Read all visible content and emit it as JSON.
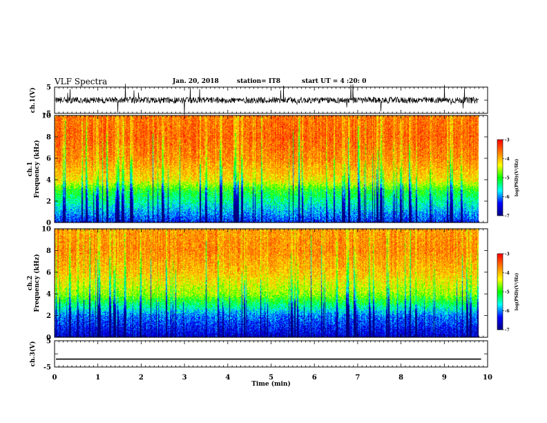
{
  "header": {
    "title": "VLF Spectra",
    "date": "Jan. 20, 2018",
    "station": "station= IT8",
    "start": "start UT =  4 :20: 0"
  },
  "chart_data": [
    {
      "type": "line",
      "panel": "ch1-waveform",
      "ylabel": "ch.1(V)",
      "ylim": [
        -5,
        5
      ],
      "yticks": [
        "5",
        "-5"
      ],
      "xlim": [
        0,
        10
      ],
      "baseline": 0,
      "description_values": {
        "typical_amplitude_V": 1.2,
        "burst_amplitude_V": 5
      }
    },
    {
      "type": "heatmap",
      "panel": "ch1-spectrogram",
      "ylabel": "ch.1\nFrequency (kHz)",
      "ylim": [
        0,
        10
      ],
      "yticks": [
        "0",
        "2",
        "4",
        "6",
        "8",
        "10"
      ],
      "xlim": [
        0,
        9.8
      ],
      "colorbar": {
        "label": "log(PSD)(V²/Hz)",
        "range": [
          -7,
          -3
        ],
        "ticks": [
          "-3",
          "-4",
          "-5",
          "-6",
          "-7"
        ]
      },
      "level_profile_kHz_vs_logPSD": [
        [
          0,
          -6.3
        ],
        [
          2,
          -5.4
        ],
        [
          3,
          -5.0
        ],
        [
          4,
          -4.2
        ],
        [
          6,
          -3.7
        ],
        [
          8,
          -3.5
        ],
        [
          10,
          -3.6
        ]
      ]
    },
    {
      "type": "heatmap",
      "panel": "ch2-spectrogram",
      "ylabel": "ch.2\nFrequency (kHz)",
      "ylim": [
        0,
        10
      ],
      "yticks": [
        "0",
        "2",
        "4",
        "6",
        "8",
        "10"
      ],
      "xlim": [
        0,
        9.8
      ],
      "colorbar": {
        "label": "log(PSD)(V²/Hz)",
        "range": [
          -7,
          -3
        ],
        "ticks": [
          "-3",
          "-4",
          "-5",
          "-6",
          "-7"
        ]
      },
      "level_profile_kHz_vs_logPSD": [
        [
          0,
          -6.6
        ],
        [
          2,
          -6.0
        ],
        [
          3,
          -5.3
        ],
        [
          4,
          -4.6
        ],
        [
          6,
          -4.0
        ],
        [
          8,
          -3.7
        ],
        [
          10,
          -3.8
        ]
      ]
    },
    {
      "type": "line",
      "panel": "ch3-waveform",
      "ylabel": "ch.3(V)",
      "ylim": [
        -5,
        5
      ],
      "yticks": [
        "5",
        "-5"
      ],
      "xlim": [
        0,
        10
      ],
      "baseline": -2
    }
  ],
  "x_axis": {
    "label": "Time (min)",
    "ticks": [
      "0",
      "1",
      "2",
      "3",
      "4",
      "5",
      "6",
      "7",
      "8",
      "9",
      "10"
    ]
  },
  "colorscale": [
    "#00007f",
    "#0000ff",
    "#00ffff",
    "#00ff00",
    "#ffff00",
    "#ff7f00",
    "#ff0000"
  ]
}
